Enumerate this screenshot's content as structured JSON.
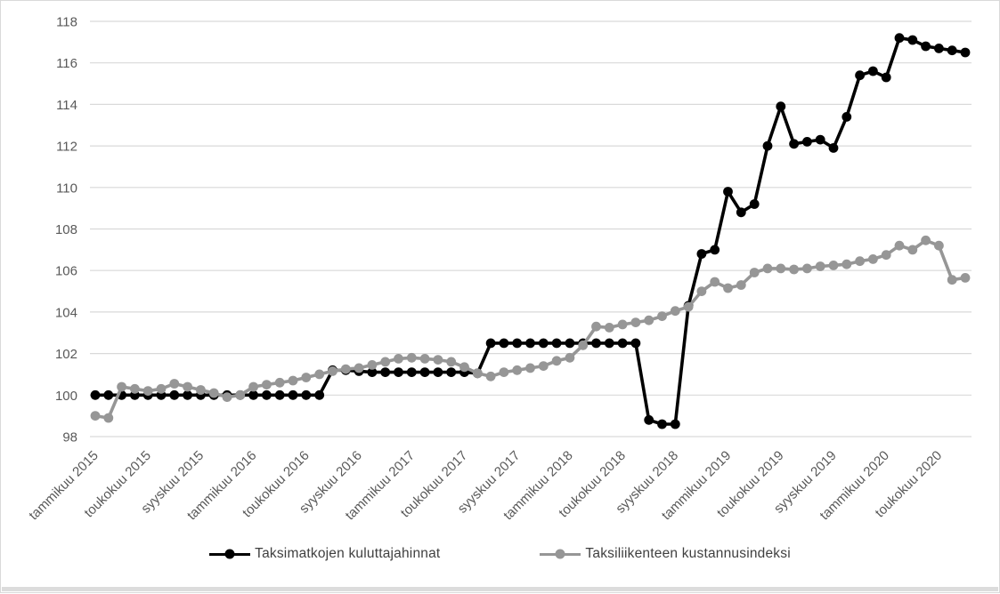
{
  "chart": {
    "legend": [
      {
        "label": "Taksimatkojen kuluttajahinnat",
        "color": "#000000"
      },
      {
        "label": "Taksiliikenteen kustannusindeksi",
        "color": "#969696"
      }
    ]
  },
  "colors": {
    "gridline": "#d9d9d9",
    "axis_label": "#595959",
    "legend_text": "#3f3f3f",
    "border": "#d9d9d9"
  },
  "chart_data": {
    "type": "line",
    "title": "",
    "xlabel": "",
    "ylabel": "",
    "ylim": [
      98,
      118
    ],
    "y_ticks": [
      98,
      100,
      102,
      104,
      106,
      108,
      110,
      112,
      114,
      116,
      118
    ],
    "grid": "horizontal",
    "legend_position": "bottom-center",
    "x_unit": "month",
    "months_between_ticks": 4,
    "x_tick_labels": [
      "tammikuu 2015",
      "toukokuu 2015",
      "syyskuu 2015",
      "tammikuu 2016",
      "toukokuu 2016",
      "syyskuu 2016",
      "tammikuu 2017",
      "toukokuu 2017",
      "syyskuu 2017",
      "tammikuu 2018",
      "toukokuu 2018",
      "syyskuu 2018",
      "tammikuu 2019",
      "toukokuu 2019",
      "syyskuu 2019",
      "tammikuu 2020",
      "toukokuu 2020"
    ],
    "series": [
      {
        "name": "Taksimatkojen kuluttajahinnat",
        "color": "#000000",
        "marker": "circle",
        "values": [
          100,
          100,
          100,
          100,
          100,
          100,
          100,
          100,
          100,
          100,
          100,
          100,
          100,
          100,
          100,
          100,
          100,
          100,
          101.2,
          101.2,
          101.15,
          101.1,
          101.1,
          101.1,
          101.1,
          101.1,
          101.1,
          101.1,
          101.1,
          101.05,
          102.5,
          102.5,
          102.5,
          102.5,
          102.5,
          102.5,
          102.5,
          102.5,
          102.5,
          102.5,
          102.5,
          102.5,
          98.8,
          98.6,
          98.6,
          104.3,
          106.8,
          107.0,
          109.8,
          108.8,
          109.2,
          112.0,
          113.9,
          112.1,
          112.2,
          112.3,
          111.9,
          113.4,
          115.4,
          115.6,
          115.3,
          117.2,
          117.1,
          116.8,
          116.7,
          116.6,
          116.5
        ]
      },
      {
        "name": "Taksiliikenteen kustannusindeksi",
        "color": "#969696",
        "marker": "circle",
        "values": [
          99.0,
          98.9,
          100.4,
          100.3,
          100.2,
          100.3,
          100.55,
          100.4,
          100.25,
          100.1,
          99.9,
          100.0,
          100.4,
          100.5,
          100.6,
          100.7,
          100.85,
          101.0,
          101.15,
          101.25,
          101.3,
          101.45,
          101.6,
          101.75,
          101.8,
          101.75,
          101.7,
          101.6,
          101.35,
          101.05,
          100.9,
          101.1,
          101.2,
          101.3,
          101.4,
          101.65,
          101.8,
          102.4,
          103.3,
          103.25,
          103.4,
          103.5,
          103.6,
          103.8,
          104.05,
          104.25,
          105.0,
          105.45,
          105.15,
          105.3,
          105.9,
          106.1,
          106.1,
          106.05,
          106.1,
          106.2,
          106.25,
          106.3,
          106.45,
          106.55,
          106.75,
          107.2,
          107.0,
          107.45,
          107.2,
          105.55,
          105.65
        ]
      }
    ]
  }
}
